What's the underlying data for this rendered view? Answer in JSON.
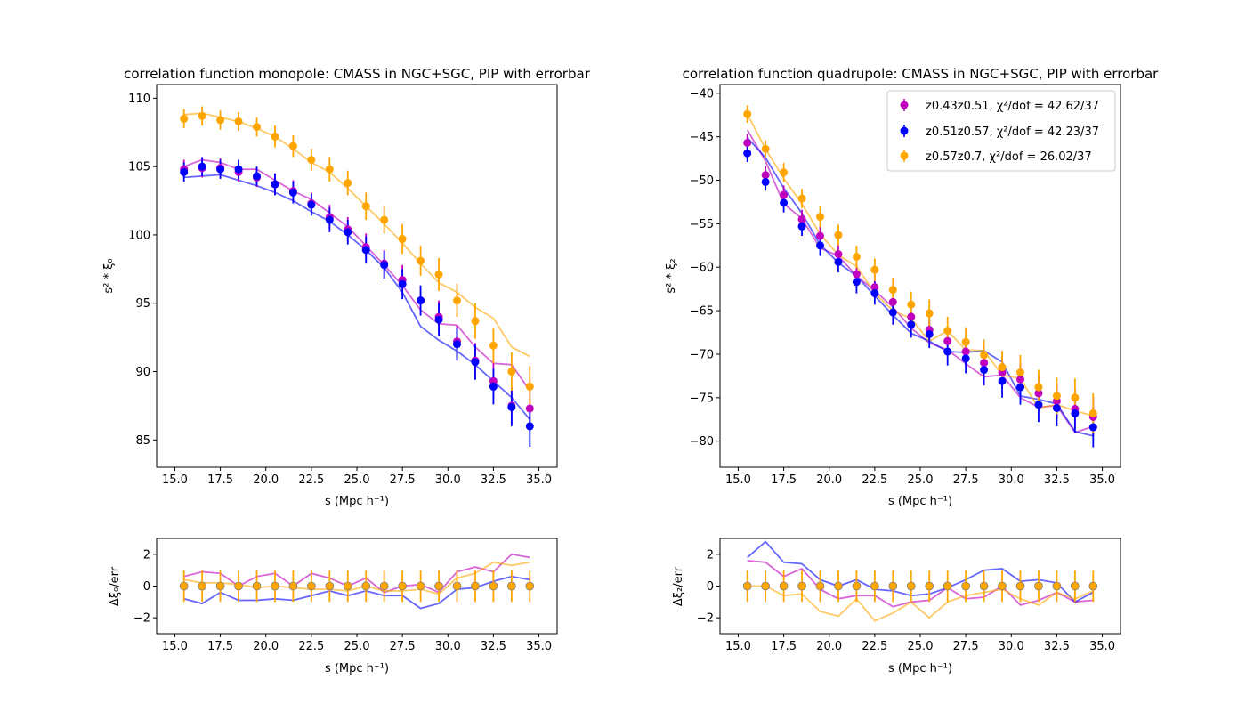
{
  "chart_data": [
    {
      "type": "line",
      "panel": "monopole",
      "title": "correlation function monopole: CMASS in NGC+SGC, PIP with errorbar",
      "xlabel": "s (Mpc h⁻¹)",
      "ylabel": "s² * ξ₀",
      "xlim": [
        14.0,
        36.0
      ],
      "ylim": [
        83.0,
        111.0
      ],
      "xticks": [
        "15.0",
        "17.5",
        "20.0",
        "22.5",
        "25.0",
        "27.5",
        "30.0",
        "32.5",
        "35.0"
      ],
      "yticks": [
        "85",
        "90",
        "95",
        "100",
        "105",
        "110"
      ],
      "x": [
        15.5,
        16.5,
        17.5,
        18.5,
        19.5,
        20.5,
        21.5,
        22.5,
        23.5,
        24.5,
        25.5,
        26.5,
        27.5,
        28.5,
        29.5,
        30.5,
        31.5,
        32.5,
        33.5,
        34.5
      ],
      "series": [
        {
          "color": "#bf00bf",
          "points": [
            104.8,
            104.9,
            104.9,
            104.6,
            104.2,
            103.7,
            103.2,
            102.3,
            101.3,
            100.4,
            99.1,
            97.9,
            96.7,
            95.2,
            94.0,
            92.2,
            90.8,
            89.3,
            87.5,
            87.3
          ],
          "errors": [
            0.7,
            0.7,
            0.7,
            0.7,
            0.7,
            0.8,
            0.8,
            0.8,
            0.9,
            0.9,
            1.0,
            1.0,
            1.1,
            1.1,
            1.2,
            1.2,
            1.3,
            1.3,
            1.4,
            1.5
          ],
          "model": [
            105.0,
            105.5,
            105.3,
            104.8,
            104.8,
            104.0,
            103.2,
            102.6,
            101.6,
            100.6,
            99.2,
            97.8,
            96.3,
            94.5,
            93.5,
            93.4,
            91.8,
            90.6,
            90.5,
            88.6
          ]
        },
        {
          "color": "#0000ff",
          "points": [
            104.6,
            105.0,
            104.8,
            104.8,
            104.3,
            103.7,
            103.1,
            102.2,
            101.1,
            100.2,
            98.9,
            97.8,
            96.4,
            95.2,
            93.8,
            92.0,
            90.7,
            88.9,
            87.4,
            86.0
          ],
          "errors": [
            0.7,
            0.7,
            0.7,
            0.7,
            0.7,
            0.8,
            0.8,
            0.8,
            0.9,
            0.9,
            1.0,
            1.0,
            1.1,
            1.1,
            1.2,
            1.2,
            1.3,
            1.3,
            1.4,
            1.5
          ],
          "model": [
            104.2,
            104.3,
            104.4,
            104.0,
            103.6,
            103.1,
            102.5,
            101.7,
            101.0,
            100.0,
            98.9,
            97.6,
            95.8,
            93.3,
            92.3,
            91.5,
            90.5,
            89.3,
            88.1,
            86.5
          ]
        },
        {
          "color": "#ffa500",
          "points": [
            108.5,
            108.7,
            108.4,
            108.3,
            107.9,
            107.2,
            106.5,
            105.5,
            104.8,
            103.8,
            102.1,
            101.1,
            99.7,
            98.1,
            97.1,
            95.2,
            93.7,
            91.9,
            90.0,
            88.9
          ],
          "errors": [
            0.7,
            0.7,
            0.7,
            0.7,
            0.7,
            0.8,
            0.8,
            0.8,
            0.9,
            0.9,
            1.0,
            1.0,
            1.1,
            1.1,
            1.2,
            1.2,
            1.3,
            1.3,
            1.4,
            1.5
          ],
          "model": [
            108.8,
            108.9,
            108.6,
            108.3,
            107.8,
            107.2,
            106.3,
            105.3,
            104.6,
            103.4,
            102.1,
            100.8,
            99.4,
            97.9,
            96.5,
            95.8,
            94.7,
            93.9,
            91.8,
            91.1
          ]
        }
      ]
    },
    {
      "type": "line",
      "panel": "quadrupole",
      "title": "correlation function quadrupole: CMASS in NGC+SGC, PIP with errorbar",
      "xlabel": "s (Mpc h⁻¹)",
      "ylabel": "s² * ξ₂",
      "xlim": [
        14.0,
        36.0
      ],
      "ylim": [
        -83.0,
        -39.0
      ],
      "xticks": [
        "15.0",
        "17.5",
        "20.0",
        "22.5",
        "25.0",
        "27.5",
        "30.0",
        "32.5",
        "35.0"
      ],
      "yticks": [
        "−40",
        "−45",
        "−50",
        "−55",
        "−60",
        "−65",
        "−70",
        "−75",
        "−80"
      ],
      "legend_position": "top-right",
      "x": [
        15.5,
        16.5,
        17.5,
        18.5,
        19.5,
        20.5,
        21.5,
        22.5,
        23.5,
        24.5,
        25.5,
        26.5,
        27.5,
        28.5,
        29.5,
        30.5,
        31.5,
        32.5,
        33.5,
        34.5
      ],
      "series": [
        {
          "name": "z0.43z0.51, χ²/dof = 42.62/37",
          "color": "#bf00bf",
          "points": [
            -45.7,
            -49.4,
            -51.7,
            -54.5,
            -56.4,
            -58.5,
            -60.8,
            -62.3,
            -64.0,
            -65.7,
            -67.2,
            -68.5,
            -69.7,
            -71.0,
            -72.1,
            -72.9,
            -74.5,
            -75.4,
            -76.3,
            -77.2
          ],
          "errors": [
            1.0,
            1.0,
            1.1,
            1.1,
            1.2,
            1.2,
            1.3,
            1.3,
            1.4,
            1.5,
            1.6,
            1.6,
            1.7,
            1.8,
            1.9,
            2.0,
            2.0,
            2.1,
            2.2,
            2.3
          ],
          "model": [
            -44.2,
            -47.8,
            -52.7,
            -54.4,
            -57.8,
            -58.7,
            -61.0,
            -62.7,
            -64.6,
            -67.0,
            -68.7,
            -69.5,
            -71.1,
            -72.6,
            -72.4,
            -75.0,
            -76.1,
            -75.9,
            -79.0,
            -78.3
          ]
        },
        {
          "name": "z0.51z0.57, χ²/dof = 42.23/37",
          "color": "#0000ff",
          "points": [
            -46.9,
            -50.2,
            -52.6,
            -55.3,
            -57.5,
            -59.4,
            -61.7,
            -63.0,
            -65.2,
            -66.6,
            -67.7,
            -69.7,
            -70.5,
            -71.8,
            -73.1,
            -73.8,
            -75.8,
            -76.2,
            -76.8,
            -78.4
          ],
          "errors": [
            1.0,
            1.0,
            1.1,
            1.1,
            1.2,
            1.2,
            1.3,
            1.3,
            1.4,
            1.5,
            1.6,
            1.6,
            1.7,
            1.8,
            1.9,
            2.0,
            2.0,
            2.1,
            2.2,
            2.3
          ],
          "model": [
            -45.1,
            -47.4,
            -50.9,
            -53.8,
            -57.4,
            -59.5,
            -61.0,
            -63.3,
            -65.5,
            -67.6,
            -68.5,
            -69.7,
            -69.8,
            -69.6,
            -70.9,
            -74.8,
            -75.2,
            -75.7,
            -78.9,
            -79.4
          ]
        },
        {
          "name": "z0.57z0.7, χ²/dof = 26.02/37",
          "color": "#ffa500",
          "points": [
            -42.4,
            -46.4,
            -49.1,
            -52.1,
            -54.2,
            -56.3,
            -58.8,
            -60.3,
            -62.6,
            -64.3,
            -65.3,
            -67.3,
            -68.6,
            -70.1,
            -71.5,
            -72.1,
            -73.8,
            -74.8,
            -75.0,
            -76.8
          ],
          "errors": [
            1.0,
            1.0,
            1.1,
            1.1,
            1.2,
            1.2,
            1.3,
            1.3,
            1.4,
            1.5,
            1.6,
            1.6,
            1.7,
            1.8,
            1.9,
            2.0,
            2.0,
            2.1,
            2.2,
            2.3
          ],
          "model": [
            -42.4,
            -46.4,
            -49.8,
            -52.7,
            -56.2,
            -58.6,
            -59.9,
            -63.0,
            -65.0,
            -65.9,
            -68.5,
            -67.3,
            -69.5,
            -69.6,
            -72.4,
            -72.8,
            -76.2,
            -75.8,
            -76.5,
            -77.1
          ]
        }
      ]
    },
    {
      "type": "line",
      "panel": "monopole-residual",
      "title": "",
      "xlabel": "s (Mpc h⁻¹)",
      "ylabel": "Δξ₀/err",
      "xlim": [
        14.0,
        36.0
      ],
      "ylim": [
        -3.0,
        3.0
      ],
      "xticks": [
        "15.0",
        "17.5",
        "20.0",
        "22.5",
        "25.0",
        "27.5",
        "30.0",
        "32.5",
        "35.0"
      ],
      "yticks": [
        "2",
        "0",
        "−2"
      ],
      "x": [
        15.5,
        16.5,
        17.5,
        18.5,
        19.5,
        20.5,
        21.5,
        22.5,
        23.5,
        24.5,
        25.5,
        26.5,
        27.5,
        28.5,
        29.5,
        30.5,
        31.5,
        32.5,
        33.5,
        34.5
      ],
      "zero_points": [
        0,
        0,
        0,
        0,
        0,
        0,
        0,
        0,
        0,
        0,
        0,
        0,
        0,
        0,
        0,
        0,
        0,
        0,
        0,
        0
      ],
      "zero_errors": [
        1,
        1,
        1,
        1,
        1,
        1,
        1,
        1,
        1,
        1,
        1,
        1,
        1,
        1,
        1,
        1,
        1,
        1,
        1,
        1
      ],
      "series": [
        {
          "color": "#bf00bf",
          "values": [
            0.6,
            0.9,
            0.8,
            0.0,
            0.6,
            0.8,
            0.0,
            0.8,
            0.5,
            0.0,
            0.5,
            -0.4,
            0.0,
            0.1,
            -0.4,
            0.9,
            1.2,
            0.9,
            2.0,
            1.8
          ]
        },
        {
          "color": "#0000ff",
          "values": [
            -0.8,
            -1.1,
            -0.4,
            -0.9,
            -0.9,
            -0.8,
            -0.9,
            -0.6,
            -0.3,
            -0.6,
            -0.3,
            -0.6,
            -0.6,
            -1.4,
            -1.1,
            -0.2,
            -0.1,
            0.3,
            0.6,
            0.4
          ]
        },
        {
          "color": "#ffa500",
          "values": [
            0.4,
            0.2,
            0.2,
            0.1,
            -0.1,
            0.0,
            -0.1,
            -0.2,
            -0.2,
            -0.3,
            0.0,
            -0.3,
            -0.3,
            -0.2,
            -0.5,
            0.5,
            0.8,
            1.5,
            1.3,
            1.5
          ]
        }
      ]
    },
    {
      "type": "line",
      "panel": "quadrupole-residual",
      "title": "",
      "xlabel": "s (Mpc h⁻¹)",
      "ylabel": "Δξ₂/err",
      "xlim": [
        14.0,
        36.0
      ],
      "ylim": [
        -3.0,
        3.0
      ],
      "xticks": [
        "15.0",
        "17.5",
        "20.0",
        "22.5",
        "25.0",
        "27.5",
        "30.0",
        "32.5",
        "35.0"
      ],
      "yticks": [
        "2",
        "0",
        "−2"
      ],
      "x": [
        15.5,
        16.5,
        17.5,
        18.5,
        19.5,
        20.5,
        21.5,
        22.5,
        23.5,
        24.5,
        25.5,
        26.5,
        27.5,
        28.5,
        29.5,
        30.5,
        31.5,
        32.5,
        33.5,
        34.5
      ],
      "zero_points": [
        0,
        0,
        0,
        0,
        0,
        0,
        0,
        0,
        0,
        0,
        0,
        0,
        0,
        0,
        0,
        0,
        0,
        0,
        0,
        0
      ],
      "zero_errors": [
        1,
        1,
        1,
        1,
        1,
        1,
        1,
        1,
        1,
        1,
        1,
        1,
        1,
        1,
        1,
        1,
        1,
        1,
        1,
        1
      ],
      "series": [
        {
          "color": "#bf00bf",
          "values": [
            1.6,
            1.5,
            0.6,
            1.1,
            -0.2,
            -0.8,
            -0.6,
            -0.6,
            -1.3,
            -1.0,
            -0.9,
            -0.1,
            -0.8,
            -0.7,
            0.0,
            -1.2,
            -0.9,
            -0.4,
            -1.0,
            -0.9
          ]
        },
        {
          "color": "#0000ff",
          "values": [
            1.8,
            2.8,
            1.5,
            1.4,
            0.4,
            0.0,
            0.4,
            -0.2,
            -0.3,
            -0.6,
            -0.5,
            -0.1,
            0.4,
            1.0,
            1.1,
            0.3,
            0.4,
            0.2,
            -1.0,
            -0.4
          ]
        },
        {
          "color": "#ffa500",
          "values": [
            0.0,
            0.0,
            -0.6,
            -0.5,
            -1.6,
            -1.9,
            -0.8,
            -2.2,
            -1.7,
            -1.0,
            -2.0,
            -1.0,
            -0.6,
            -0.4,
            -0.2,
            -0.8,
            -1.2,
            -0.4,
            -0.8,
            -0.3
          ]
        }
      ]
    }
  ]
}
